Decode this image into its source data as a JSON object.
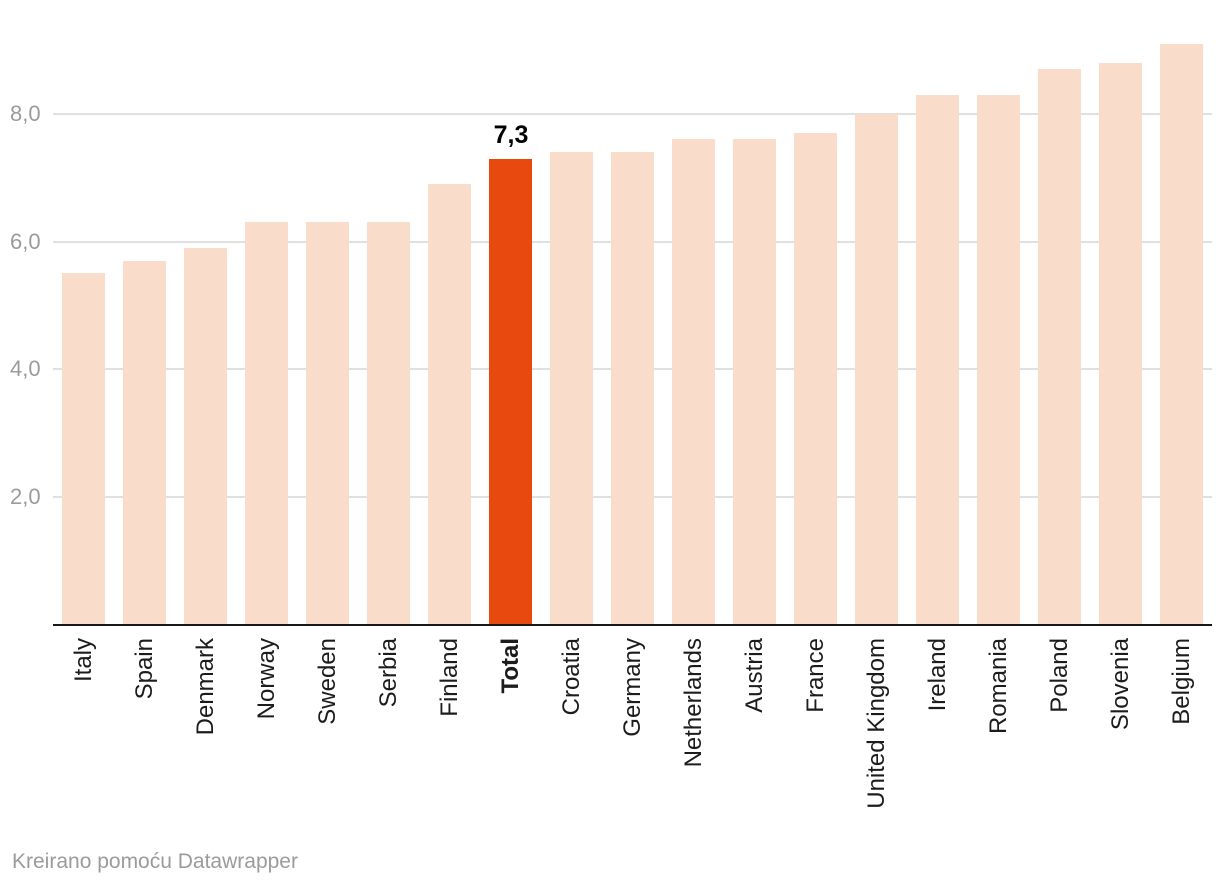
{
  "chart_data": {
    "type": "bar",
    "title": "",
    "xlabel": "",
    "ylabel": "",
    "categories": [
      "Italy",
      "Spain",
      "Denmark",
      "Norway",
      "Sweden",
      "Serbia",
      "Finland",
      "Total",
      "Croatia",
      "Germany",
      "Netherlands",
      "Austria",
      "France",
      "United Kingdom",
      "Ireland",
      "Romania",
      "Poland",
      "Slovenia",
      "Belgium"
    ],
    "values": [
      5.5,
      5.7,
      5.9,
      6.3,
      6.3,
      6.3,
      6.9,
      7.3,
      7.4,
      7.4,
      7.6,
      7.6,
      7.7,
      8.0,
      8.3,
      8.3,
      8.7,
      8.8,
      9.1
    ],
    "highlight_index": 7,
    "highlight_category": "Total",
    "highlight_label": "7,3",
    "ylim": [
      0,
      9.2
    ],
    "yticks": [
      {
        "value": 2,
        "label": "2,0"
      },
      {
        "value": 4,
        "label": "4,0"
      },
      {
        "value": 6,
        "label": "6,0"
      },
      {
        "value": 8,
        "label": "8,0"
      }
    ],
    "grid": true,
    "legend": "none",
    "decimal_separator": ","
  },
  "colors": {
    "bar_default": "#fadcca",
    "bar_highlight": "#e8490f",
    "gridline": "#e0e0e0",
    "axis_line": "#181818",
    "tick_label": "#9b9b9b",
    "category_label": "#1c1c1c",
    "value_label": "#000000",
    "footer_text": "#9b9b9b",
    "background": "#ffffff"
  },
  "footer": {
    "text": "Kreirano pomoću Datawrapper"
  }
}
